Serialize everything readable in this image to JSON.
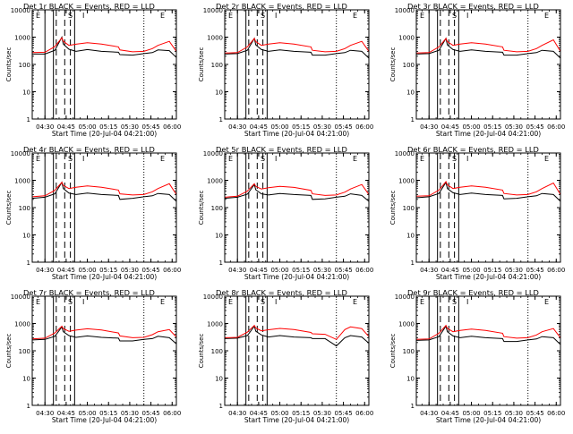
{
  "colors": {
    "background": "#ffffff",
    "events": "#000000",
    "lld": "#ff0000",
    "markers": "#000000"
  },
  "y_axis_label": "Counts/sec",
  "x_axis_label": "Start Time (20-Jul-04 04:21:00)",
  "y_tick_labels": [
    "1",
    "10",
    "100",
    "1000",
    "10000"
  ],
  "x_tick_labels": [
    "04:30",
    "04:45",
    "05:00",
    "05:15",
    "05:30",
    "05:45",
    "06:00"
  ],
  "region_labels": [
    "E",
    "S",
    "I",
    "E"
  ],
  "chart_data": [
    {
      "type": "line",
      "title": "Det 1r BLACK = Events, RED = LLD",
      "y_scale": "log",
      "ylim": [
        1,
        10000
      ],
      "xlim": [
        "04:21",
        "06:03"
      ],
      "x": [
        "04:21",
        "04:30",
        "04:37",
        "04:42",
        "04:43",
        "04:47",
        "04:52",
        "05:00",
        "05:10",
        "05:22",
        "05:23",
        "05:32",
        "05:40",
        "05:46",
        "05:50",
        "05:58",
        "06:03"
      ],
      "series": [
        {
          "name": "Events",
          "color": "#000000",
          "values": [
            240,
            240,
            330,
            1000,
            560,
            360,
            300,
            350,
            300,
            280,
            230,
            220,
            250,
            270,
            340,
            320,
            180
          ]
        },
        {
          "name": "LLD",
          "color": "#ff0000",
          "values": [
            270,
            280,
            450,
            950,
            700,
            500,
            550,
            620,
            560,
            440,
            340,
            290,
            300,
            380,
            500,
            700,
            300
          ]
        }
      ],
      "markers": {
        "dashed": [
          "04:38",
          "04:44",
          "04:48"
        ],
        "solid": [
          "04:21",
          "04:30",
          "04:36",
          "04:51",
          "06:03"
        ],
        "dotted": [
          "05:40"
        ]
      }
    },
    {
      "type": "line",
      "title": "Det 2r BLACK = Events, RED = LLD",
      "y_scale": "log",
      "ylim": [
        1,
        10000
      ],
      "xlim": [
        "04:21",
        "06:03"
      ],
      "x": [
        "04:21",
        "04:30",
        "04:37",
        "04:42",
        "04:43",
        "04:47",
        "04:52",
        "05:00",
        "05:10",
        "05:22",
        "05:23",
        "05:32",
        "05:40",
        "05:46",
        "05:50",
        "05:58",
        "06:03"
      ],
      "series": [
        {
          "name": "Events",
          "color": "#000000",
          "values": [
            240,
            250,
            330,
            900,
            520,
            350,
            300,
            340,
            300,
            280,
            220,
            220,
            250,
            270,
            330,
            300,
            170
          ]
        },
        {
          "name": "LLD",
          "color": "#ff0000",
          "values": [
            260,
            270,
            440,
            900,
            680,
            500,
            560,
            620,
            560,
            440,
            330,
            290,
            300,
            380,
            500,
            700,
            300
          ]
        }
      ],
      "markers": {
        "dashed": [
          "04:38",
          "04:44",
          "04:48"
        ],
        "solid": [
          "04:21",
          "04:30",
          "04:36",
          "04:51",
          "06:03"
        ],
        "dotted": [
          "05:40"
        ]
      }
    },
    {
      "type": "line",
      "title": "Det 3r BLACK = Events, RED = LLD",
      "y_scale": "log",
      "ylim": [
        1,
        10000
      ],
      "xlim": [
        "04:21",
        "06:03"
      ],
      "x": [
        "04:21",
        "04:30",
        "04:37",
        "04:42",
        "04:43",
        "04:47",
        "04:52",
        "05:00",
        "05:10",
        "05:22",
        "05:23",
        "05:32",
        "05:40",
        "05:46",
        "05:50",
        "05:58",
        "06:03"
      ],
      "series": [
        {
          "name": "Events",
          "color": "#000000",
          "values": [
            240,
            250,
            330,
            900,
            520,
            350,
            300,
            340,
            300,
            280,
            220,
            220,
            250,
            270,
            330,
            300,
            170
          ]
        },
        {
          "name": "LLD",
          "color": "#ff0000",
          "values": [
            260,
            270,
            440,
            900,
            680,
            500,
            560,
            620,
            560,
            440,
            330,
            290,
            300,
            380,
            500,
            800,
            300
          ]
        }
      ],
      "markers": {
        "dashed": [
          "04:38",
          "04:44",
          "04:48"
        ],
        "solid": [
          "04:21",
          "04:30",
          "04:36",
          "04:51",
          "06:03"
        ],
        "dotted": [
          "05:40"
        ]
      }
    },
    {
      "type": "line",
      "title": "Det 4r BLACK = Events, RED = LLD",
      "y_scale": "log",
      "ylim": [
        1,
        10000
      ],
      "xlim": [
        "04:21",
        "06:03"
      ],
      "x": [
        "04:21",
        "04:30",
        "04:37",
        "04:42",
        "04:43",
        "04:47",
        "04:52",
        "05:00",
        "05:10",
        "05:22",
        "05:23",
        "05:32",
        "05:40",
        "05:46",
        "05:50",
        "05:58",
        "06:03"
      ],
      "series": [
        {
          "name": "Events",
          "color": "#000000",
          "values": [
            220,
            240,
            320,
            850,
            500,
            340,
            300,
            340,
            300,
            280,
            200,
            220,
            250,
            270,
            330,
            300,
            170
          ]
        },
        {
          "name": "LLD",
          "color": "#ff0000",
          "values": [
            250,
            270,
            430,
            850,
            650,
            500,
            560,
            620,
            560,
            440,
            320,
            290,
            300,
            380,
            500,
            750,
            300
          ]
        }
      ],
      "markers": {
        "dashed": [
          "04:38",
          "04:44",
          "04:48"
        ],
        "solid": [
          "04:21",
          "04:30",
          "04:36",
          "04:51",
          "06:03"
        ],
        "dotted": [
          "05:40"
        ]
      }
    },
    {
      "type": "line",
      "title": "Det 5r BLACK = Events, RED = LLD",
      "y_scale": "log",
      "ylim": [
        1,
        10000
      ],
      "xlim": [
        "04:21",
        "06:03"
      ],
      "x": [
        "04:21",
        "04:30",
        "04:37",
        "04:42",
        "04:43",
        "04:47",
        "04:52",
        "05:00",
        "05:10",
        "05:22",
        "05:23",
        "05:32",
        "05:40",
        "05:46",
        "05:50",
        "05:58",
        "06:03"
      ],
      "series": [
        {
          "name": "Events",
          "color": "#000000",
          "values": [
            220,
            240,
            310,
            700,
            450,
            320,
            290,
            330,
            300,
            280,
            200,
            210,
            240,
            260,
            320,
            280,
            170
          ]
        },
        {
          "name": "LLD",
          "color": "#ff0000",
          "values": [
            240,
            260,
            400,
            750,
            600,
            480,
            540,
            600,
            550,
            430,
            320,
            280,
            290,
            370,
            480,
            700,
            300
          ]
        }
      ],
      "markers": {
        "dashed": [
          "04:38",
          "04:44",
          "04:48"
        ],
        "solid": [
          "04:21",
          "04:30",
          "04:36",
          "04:51",
          "06:03"
        ],
        "dotted": [
          "05:40"
        ]
      }
    },
    {
      "type": "line",
      "title": "Det 6r BLACK = Events, RED = LLD",
      "y_scale": "log",
      "ylim": [
        1,
        10000
      ],
      "xlim": [
        "04:21",
        "06:03"
      ],
      "x": [
        "04:21",
        "04:30",
        "04:37",
        "04:42",
        "04:43",
        "04:47",
        "04:52",
        "05:00",
        "05:10",
        "05:22",
        "05:23",
        "05:32",
        "05:40",
        "05:46",
        "05:50",
        "05:58",
        "06:03"
      ],
      "series": [
        {
          "name": "Events",
          "color": "#000000",
          "values": [
            230,
            250,
            330,
            850,
            500,
            350,
            300,
            340,
            300,
            280,
            210,
            220,
            250,
            270,
            330,
            300,
            170
          ]
        },
        {
          "name": "LLD",
          "color": "#ff0000",
          "values": [
            260,
            270,
            440,
            900,
            680,
            500,
            560,
            620,
            560,
            440,
            330,
            290,
            300,
            380,
            500,
            800,
            300
          ]
        }
      ],
      "markers": {
        "dashed": [
          "04:38",
          "04:44",
          "04:48"
        ],
        "solid": [
          "04:21",
          "04:30",
          "04:36",
          "04:51",
          "06:03"
        ],
        "dotted": [
          "05:40"
        ]
      }
    },
    {
      "type": "line",
      "title": "Det 7r BLACK = Events, RED = LLD",
      "y_scale": "log",
      "ylim": [
        1,
        10000
      ],
      "xlim": [
        "04:21",
        "06:03"
      ],
      "x": [
        "04:21",
        "04:30",
        "04:37",
        "04:42",
        "04:43",
        "04:47",
        "04:52",
        "05:00",
        "05:10",
        "05:22",
        "05:23",
        "05:32",
        "05:40",
        "05:46",
        "05:50",
        "05:58",
        "06:03"
      ],
      "series": [
        {
          "name": "Events",
          "color": "#000000",
          "values": [
            250,
            260,
            340,
            750,
            500,
            360,
            310,
            350,
            310,
            290,
            230,
            230,
            260,
            280,
            340,
            300,
            180
          ]
        },
        {
          "name": "LLD",
          "color": "#ff0000",
          "values": [
            270,
            290,
            450,
            800,
            650,
            520,
            570,
            640,
            580,
            450,
            350,
            300,
            310,
            390,
            500,
            600,
            320
          ]
        }
      ],
      "markers": {
        "dashed": [
          "04:38",
          "04:44",
          "04:48"
        ],
        "solid": [
          "04:21",
          "04:30",
          "04:36",
          "04:51",
          "06:03"
        ],
        "dotted": [
          "05:40"
        ]
      }
    },
    {
      "type": "line",
      "title": "Det 8r BLACK = Events, RED = LLD",
      "y_scale": "log",
      "ylim": [
        1,
        10000
      ],
      "xlim": [
        "04:21",
        "06:03"
      ],
      "x": [
        "04:21",
        "04:30",
        "04:37",
        "04:42",
        "04:43",
        "04:47",
        "04:52",
        "05:00",
        "05:10",
        "05:22",
        "05:23",
        "05:32",
        "05:40",
        "05:46",
        "05:50",
        "05:58",
        "06:03"
      ],
      "series": [
        {
          "name": "Events",
          "color": "#000000",
          "values": [
            280,
            290,
            360,
            800,
            520,
            380,
            320,
            360,
            320,
            300,
            280,
            280,
            150,
            300,
            360,
            320,
            190
          ]
        },
        {
          "name": "LLD",
          "color": "#ff0000",
          "values": [
            300,
            310,
            480,
            850,
            680,
            540,
            590,
            660,
            600,
            470,
            420,
            400,
            260,
            600,
            750,
            650,
            330
          ]
        }
      ],
      "markers": {
        "dashed": [
          "04:38",
          "04:44",
          "04:48"
        ],
        "solid": [
          "04:21",
          "04:30",
          "04:36",
          "04:51",
          "06:03"
        ],
        "dotted": [
          "05:40"
        ]
      }
    },
    {
      "type": "line",
      "title": "Det 9r BLACK = Events, RED = LLD",
      "y_scale": "log",
      "ylim": [
        1,
        10000
      ],
      "xlim": [
        "04:21",
        "06:03"
      ],
      "x": [
        "04:21",
        "04:30",
        "04:37",
        "04:42",
        "04:43",
        "04:47",
        "04:52",
        "05:00",
        "05:10",
        "05:22",
        "05:23",
        "05:32",
        "05:40",
        "05:46",
        "05:50",
        "05:58",
        "06:03"
      ],
      "series": [
        {
          "name": "Events",
          "color": "#000000",
          "values": [
            240,
            250,
            330,
            800,
            500,
            350,
            300,
            340,
            300,
            280,
            220,
            220,
            250,
            270,
            330,
            300,
            170
          ]
        },
        {
          "name": "LLD",
          "color": "#ff0000",
          "values": [
            260,
            270,
            440,
            850,
            660,
            500,
            560,
            620,
            560,
            440,
            330,
            290,
            300,
            380,
            500,
            650,
            300
          ]
        }
      ],
      "markers": {
        "dashed": [
          "04:38",
          "04:44",
          "04:48"
        ],
        "solid": [
          "04:21",
          "04:30",
          "04:36",
          "04:51",
          "06:03"
        ],
        "dotted": [
          "05:40"
        ]
      }
    }
  ]
}
